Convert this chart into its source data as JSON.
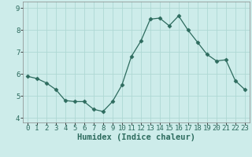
{
  "x": [
    0,
    1,
    2,
    3,
    4,
    5,
    6,
    7,
    8,
    9,
    10,
    11,
    12,
    13,
    14,
    15,
    16,
    17,
    18,
    19,
    20,
    21,
    22,
    23
  ],
  "y": [
    5.9,
    5.8,
    5.6,
    5.3,
    4.8,
    4.75,
    4.75,
    4.4,
    4.3,
    4.75,
    5.5,
    6.8,
    7.5,
    8.5,
    8.55,
    8.2,
    8.65,
    8.0,
    7.45,
    6.9,
    6.6,
    6.65,
    5.7,
    5.3
  ],
  "line_color": "#2d6b5e",
  "marker": "D",
  "marker_size": 2.5,
  "bg_color": "#cdecea",
  "grid_color": "#aed8d4",
  "xlabel": "Humidex (Indice chaleur)",
  "xlim": [
    -0.5,
    23.5
  ],
  "ylim": [
    3.8,
    9.3
  ],
  "yticks": [
    4,
    5,
    6,
    7,
    8,
    9
  ],
  "xticks": [
    0,
    1,
    2,
    3,
    4,
    5,
    6,
    7,
    8,
    9,
    10,
    11,
    12,
    13,
    14,
    15,
    16,
    17,
    18,
    19,
    20,
    21,
    22,
    23
  ],
  "xlabel_fontsize": 7.5,
  "tick_fontsize": 6.5
}
